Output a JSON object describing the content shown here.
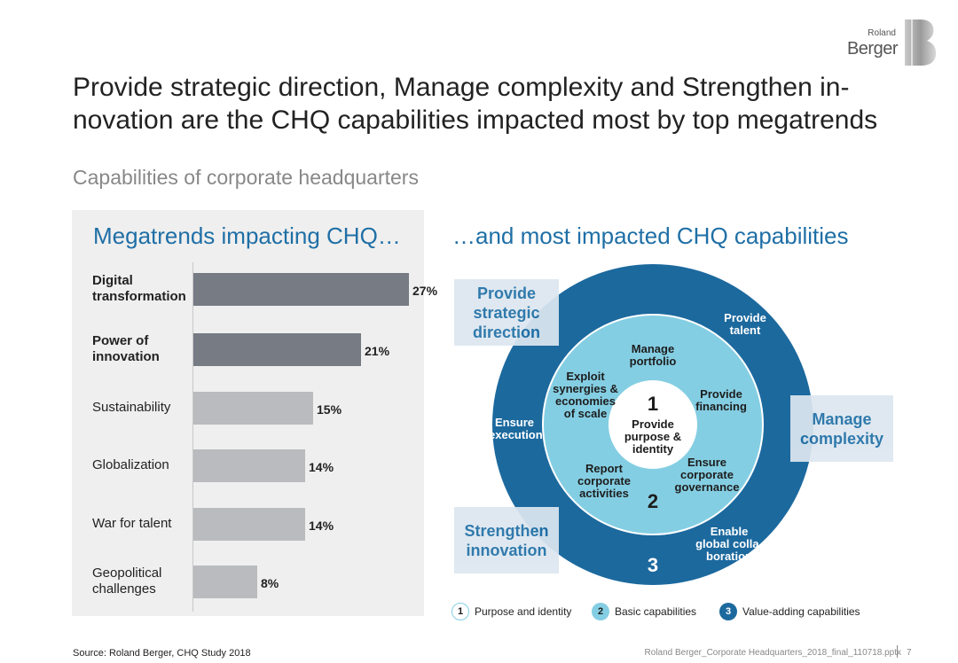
{
  "logo": {
    "line1": "Roland",
    "line2": "Berger"
  },
  "title": "Provide strategic direction, Manage complexity and Strengthen in-novation are the CHQ capabilities impacted most by top megatrends",
  "subtitle": "Capabilities of corporate headquarters",
  "left_heading": "Megatrends impacting CHQ…",
  "right_heading": "…and most impacted CHQ capabilities",
  "chart_data": {
    "type": "bar",
    "orientation": "horizontal",
    "categories": [
      "Digital transformation",
      "Power of innovation",
      "Sustainability",
      "Globalization",
      "War for talent",
      "Geopolitical challenges"
    ],
    "values": [
      27,
      21,
      15,
      14,
      14,
      8
    ],
    "value_labels": [
      "27%",
      "21%",
      "15%",
      "14%",
      "14%",
      "8%"
    ],
    "highlighted": [
      true,
      true,
      false,
      false,
      false,
      false
    ],
    "colors": {
      "highlight": "#767b84",
      "normal": "#b9bbbe"
    },
    "xlim": [
      0,
      30
    ],
    "xlabel": "",
    "ylabel": ""
  },
  "bars": [
    {
      "label": "Digital transformation",
      "value_label": "27%"
    },
    {
      "label": "Power of innovation",
      "value_label": "21%"
    },
    {
      "label": "Sustainability",
      "value_label": "15%"
    },
    {
      "label": "Globalization",
      "value_label": "14%"
    },
    {
      "label": "War for talent",
      "value_label": "14%"
    },
    {
      "label": "Geopolitical challenges",
      "value_label": "8%"
    }
  ],
  "circle": {
    "colors": {
      "outer": "#1c699e",
      "middle": "#84cee3",
      "inner": "#ffffff"
    },
    "inner": {
      "number": "1",
      "label": "Provide purpose & identity"
    },
    "middle": {
      "number": "2",
      "items": [
        "Manage portfolio",
        "Exploit synergies & economies of scale",
        "Provide financing",
        "Report corporate activities",
        "Ensure corporate governance"
      ]
    },
    "outer": {
      "number": "3",
      "items": [
        "Provide talent",
        "Ensure execution",
        "Enable global colla-boration"
      ]
    }
  },
  "callouts": {
    "strategic": "Provide strategic direction",
    "complexity": "Manage complexity",
    "innovation": "Strengthen innovation"
  },
  "legend": [
    {
      "number": "1",
      "label": "Purpose and identity"
    },
    {
      "number": "2",
      "label": "Basic capabilities"
    },
    {
      "number": "3",
      "label": "Value-adding capabilities"
    }
  ],
  "source": "Source: Roland Berger, CHQ Study 2018",
  "footer": "Roland Berger_Corporate Headquarters_2018_final_110718.pptx",
  "page_number": "7"
}
